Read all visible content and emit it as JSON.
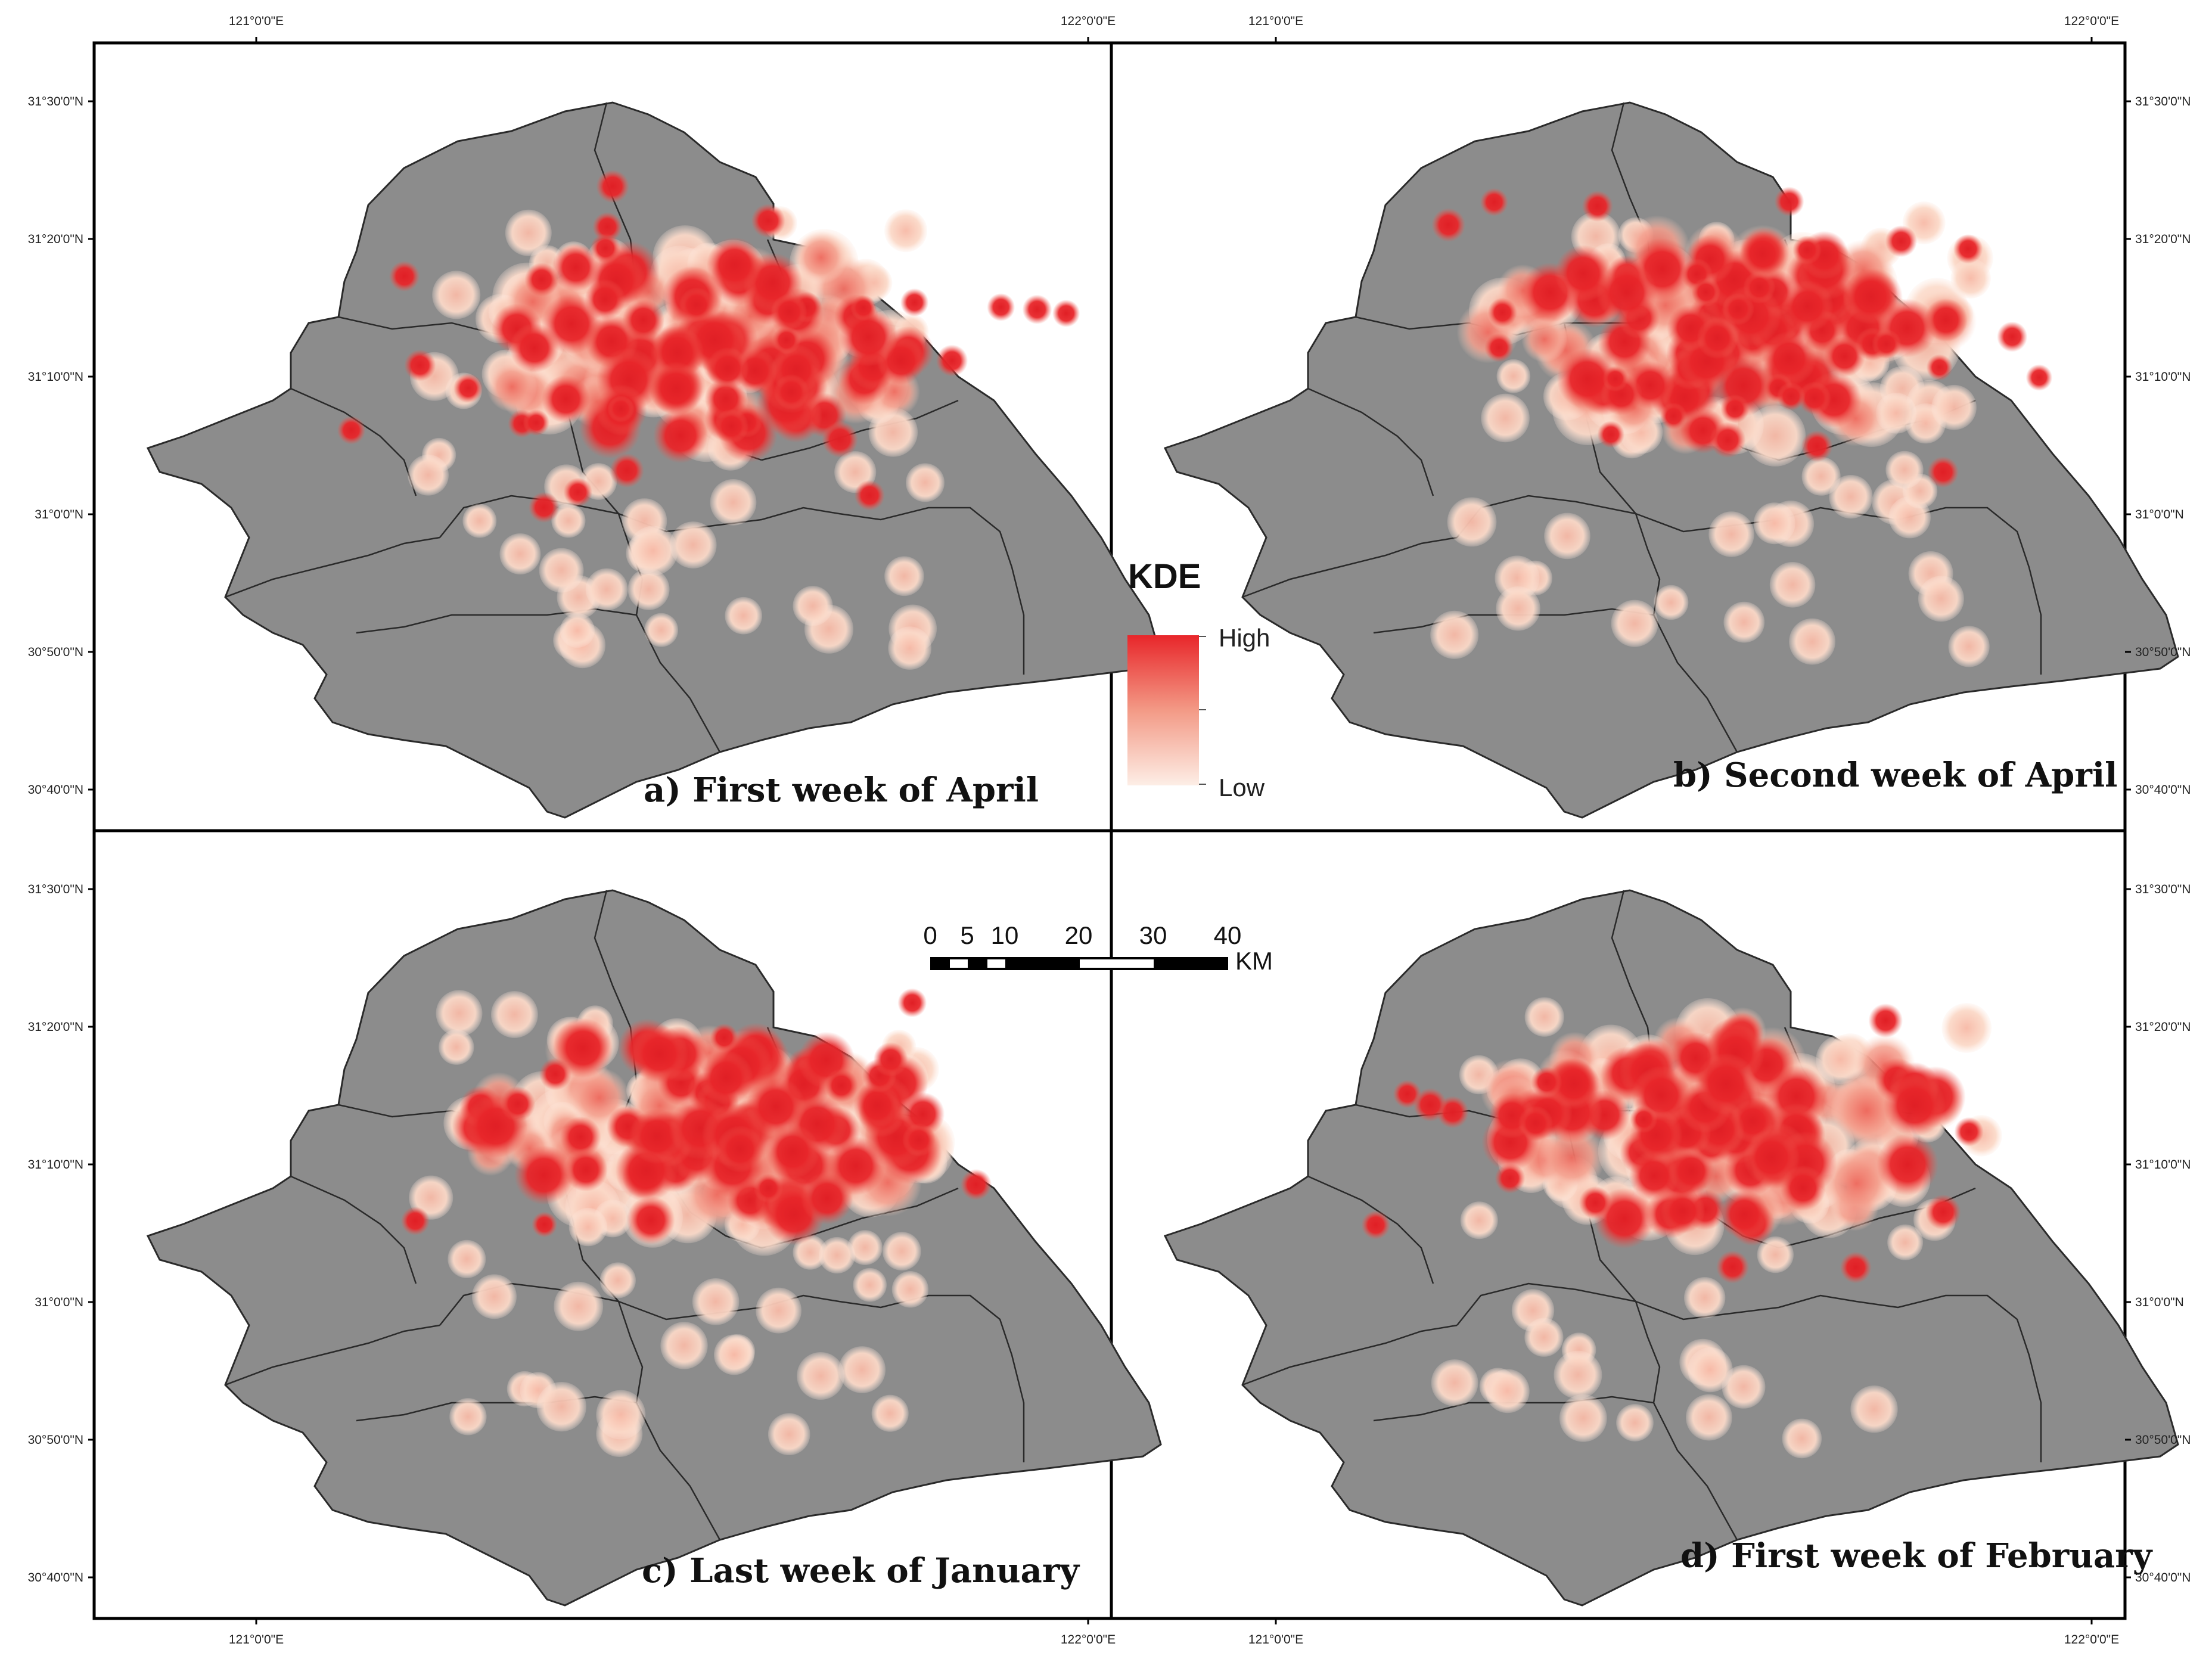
{
  "figure": {
    "panels": [
      {
        "id": "a",
        "title": "a) First week of April"
      },
      {
        "id": "b",
        "title": "b) Second week of April"
      },
      {
        "id": "c",
        "title": "c) Last week of January"
      },
      {
        "id": "d",
        "title": "d) First week of February"
      }
    ],
    "lon_ticks": [
      "121°0'0\"E",
      "122°0'0\"E"
    ],
    "lat_ticks": [
      "31°30'0\"N",
      "31°20'0\"N",
      "31°10'0\"N",
      "31°0'0\"N",
      "30°50'0\"N",
      "30°40'0\"N"
    ],
    "legend": {
      "title": "KDE",
      "high_label": "High",
      "low_label": "Low",
      "high_color": "#e8262a",
      "low_color": "#fde9df"
    },
    "scale_bar": {
      "labels": [
        "0",
        "5",
        "10",
        "20",
        "30",
        "40"
      ],
      "unit": "KM"
    },
    "colors": {
      "land": "#8c8c8c",
      "boundary": "#2a2a2a",
      "hotspot_high": "#e8262a",
      "hotspot_low": "#fbd9c8"
    }
  }
}
